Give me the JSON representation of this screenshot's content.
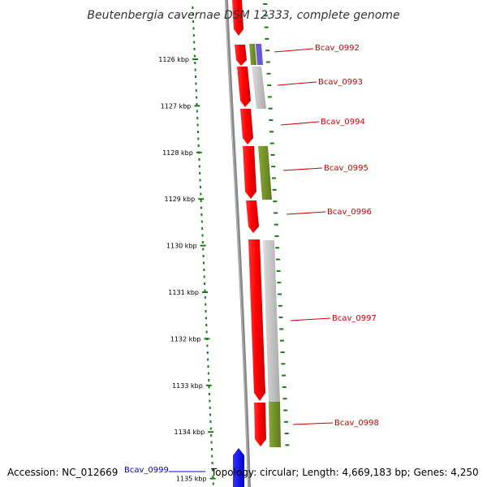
{
  "title": "Beutenbergia cavernae DSM 12333, complete genome",
  "ticks": [
    "1126 kbp",
    "1127 kbp",
    "1128 kbp",
    "1129 kbp",
    "1130 kbp",
    "1131 kbp",
    "1132 kbp",
    "1133 kbp",
    "1134 kbp",
    "1135 kbp"
  ],
  "genes": [
    {
      "label": "Bcav_0992",
      "color": "#cc0000"
    },
    {
      "label": "Bcav_0993",
      "color": "#cc0000"
    },
    {
      "label": "Bcav_0994",
      "color": "#cc0000"
    },
    {
      "label": "Bcav_0995",
      "color": "#cc0000"
    },
    {
      "label": "Bcav_0996",
      "color": "#cc0000"
    },
    {
      "label": "Bcav_0997",
      "color": "#cc0000"
    },
    {
      "label": "Bcav_0998",
      "color": "#cc0000"
    },
    {
      "label": "Bcav_0999",
      "color": "#0000cc"
    }
  ],
  "footer": {
    "accession": "Accession: NC_012669",
    "info": "Topology: circular; Length: 4,669,183 bp; Genes: 4,250"
  },
  "colors": {
    "forward_gene": "#ff0000",
    "reverse_gene": "#0000ff",
    "cog_green": "#6b8e23",
    "cog_gray": "#bbbbbb",
    "cog_purple": "#6a5acd",
    "dots": "#1a7a1a",
    "backbone": "#808080"
  }
}
